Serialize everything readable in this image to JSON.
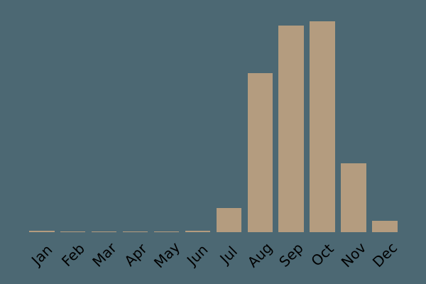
{
  "chart_data": {
    "type": "bar",
    "title": "",
    "xlabel": "",
    "ylabel": "",
    "categories": [
      "Jan",
      "Feb",
      "Mar",
      "Apr",
      "May",
      "Jun",
      "Jul",
      "Aug",
      "Sep",
      "Oct",
      "Nov",
      "Dec"
    ],
    "values": [
      0.8,
      0.5,
      0.5,
      0.5,
      0.5,
      0.8,
      11.4,
      75.3,
      97.8,
      100,
      32.7,
      5.4
    ],
    "value_scale": "percent_of_tallest_bar",
    "ylim": [
      0,
      100
    ],
    "axes_visible": false,
    "grid": false,
    "legend": null,
    "tick_label_rotation_deg": 45,
    "colors": {
      "background": "#4c6873",
      "bar": "#b49c7f",
      "tick_label": "#000000"
    }
  }
}
